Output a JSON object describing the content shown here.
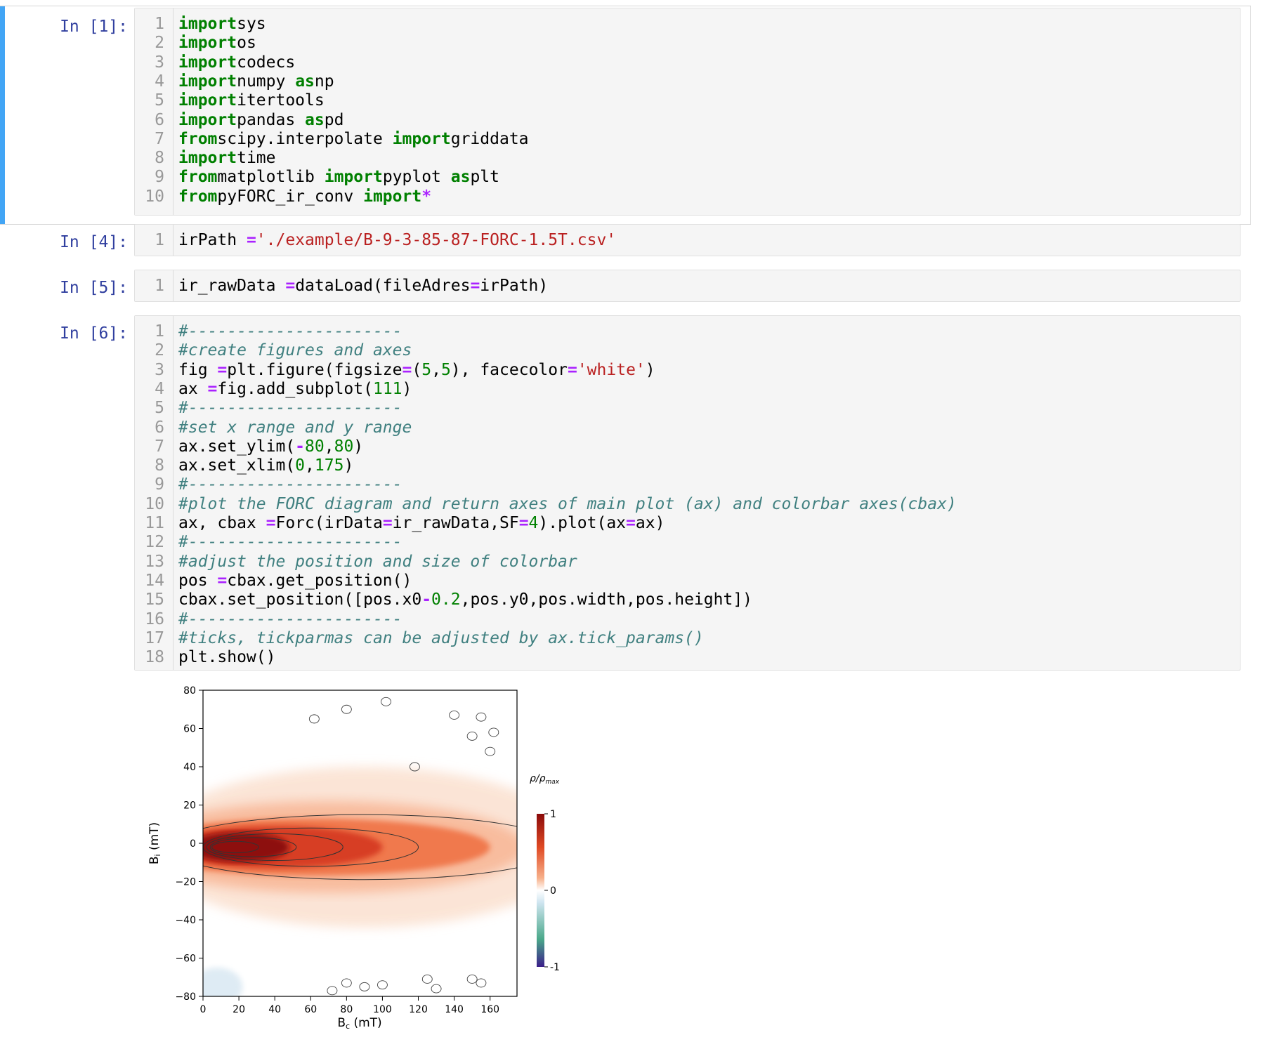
{
  "cells": [
    {
      "prompt": "In [1]:",
      "lines": [
        [
          [
            "kw",
            "import"
          ],
          [
            "",
            "sys"
          ]
        ],
        [
          [
            "kw",
            "import"
          ],
          [
            "",
            "os"
          ]
        ],
        [
          [
            "kw",
            "import"
          ],
          [
            "",
            "codecs"
          ]
        ],
        [
          [
            "kw",
            "import"
          ],
          [
            "",
            "numpy "
          ],
          [
            "kw",
            "as"
          ],
          [
            "",
            "np"
          ]
        ],
        [
          [
            "kw",
            "import"
          ],
          [
            "",
            "itertools"
          ]
        ],
        [
          [
            "kw",
            "import"
          ],
          [
            "",
            "pandas "
          ],
          [
            "kw",
            "as"
          ],
          [
            "",
            "pd"
          ]
        ],
        [
          [
            "kw",
            "from"
          ],
          [
            "",
            "scipy.interpolate "
          ],
          [
            "kw",
            "import"
          ],
          [
            "",
            "griddata"
          ]
        ],
        [
          [
            "kw",
            "import"
          ],
          [
            "",
            "time"
          ]
        ],
        [
          [
            "kw",
            "from"
          ],
          [
            "",
            "matplotlib "
          ],
          [
            "kw",
            "import"
          ],
          [
            "",
            "pyplot "
          ],
          [
            "kw",
            "as"
          ],
          [
            "",
            "plt"
          ]
        ],
        [
          [
            "kw",
            "from"
          ],
          [
            "",
            "pyFORC_ir_conv "
          ],
          [
            "kw",
            "import"
          ],
          [
            "op",
            "*"
          ]
        ]
      ]
    },
    {
      "prompt": "In [4]:",
      "lines": [
        [
          [
            "",
            "irPath "
          ],
          [
            "op",
            "="
          ],
          [
            "",
            ""
          ],
          [
            "str",
            "'./example/B-9-3-85-87-FORC-1.5T.csv'"
          ]
        ]
      ]
    },
    {
      "prompt": "In [5]:",
      "lines": [
        [
          [
            "",
            "ir_rawData "
          ],
          [
            "op",
            "="
          ],
          [
            "",
            "dataLoad(fileAdres"
          ],
          [
            "op",
            "="
          ],
          [
            "",
            "irPath)"
          ]
        ]
      ]
    },
    {
      "prompt": "In [6]:",
      "lines": [
        [
          [
            "cm",
            "#----------------------"
          ]
        ],
        [
          [
            "cm",
            "#create figures and axes"
          ]
        ],
        [
          [
            "",
            "fig "
          ],
          [
            "op",
            "="
          ],
          [
            "",
            "plt.figure(figsize"
          ],
          [
            "op",
            "="
          ],
          [
            "",
            "("
          ],
          [
            "num",
            "5"
          ],
          [
            "",
            ","
          ],
          [
            "num",
            "5"
          ],
          [
            "",
            "), facecolor"
          ],
          [
            "op",
            "="
          ],
          [
            "str",
            "'white'"
          ],
          [
            "",
            ")"
          ]
        ],
        [
          [
            "",
            "ax "
          ],
          [
            "op",
            "="
          ],
          [
            "",
            "fig.add_subplot("
          ],
          [
            "num",
            "111"
          ],
          [
            "",
            ")"
          ]
        ],
        [
          [
            "cm",
            "#----------------------"
          ]
        ],
        [
          [
            "cm",
            "#set x range and y range"
          ]
        ],
        [
          [
            "",
            "ax.set_ylim("
          ],
          [
            "op",
            "-"
          ],
          [
            "num",
            "80"
          ],
          [
            "",
            ","
          ],
          [
            "num",
            "80"
          ],
          [
            "",
            ")"
          ]
        ],
        [
          [
            "",
            "ax.set_xlim("
          ],
          [
            "num",
            "0"
          ],
          [
            "",
            ","
          ],
          [
            "num",
            "175"
          ],
          [
            "",
            ")"
          ]
        ],
        [
          [
            "cm",
            "#----------------------"
          ]
        ],
        [
          [
            "cm",
            "#plot the FORC diagram and return axes of main plot (ax) and colorbar axes(cbax)"
          ]
        ],
        [
          [
            "",
            "ax, cbax "
          ],
          [
            "op",
            "="
          ],
          [
            "",
            "Forc(irData"
          ],
          [
            "op",
            "="
          ],
          [
            "",
            "ir_rawData,SF"
          ],
          [
            "op",
            "="
          ],
          [
            "num",
            "4"
          ],
          [
            "",
            ").plot(ax"
          ],
          [
            "op",
            "="
          ],
          [
            "",
            "ax)"
          ]
        ],
        [
          [
            "cm",
            "#----------------------"
          ]
        ],
        [
          [
            "cm",
            "#adjust the position and size of colorbar"
          ]
        ],
        [
          [
            "",
            "pos "
          ],
          [
            "op",
            "="
          ],
          [
            "",
            "cbax.get_position()"
          ]
        ],
        [
          [
            "",
            "cbax.set_position([pos.x0"
          ],
          [
            "op",
            "-"
          ],
          [
            "num",
            "0.2"
          ],
          [
            "",
            ",pos.y0,pos.width,pos.height])"
          ]
        ],
        [
          [
            "cm",
            "#----------------------"
          ]
        ],
        [
          [
            "cm",
            "#ticks, tickparmas can be adjusted by ax.tick_params()"
          ]
        ],
        [
          [
            "",
            "plt.show()"
          ]
        ]
      ]
    }
  ],
  "chart_data": {
    "type": "heatmap",
    "xlabel": "B_c (mT)",
    "ylabel": "B_i (mT)",
    "xlim": [
      0,
      175
    ],
    "ylim": [
      -80,
      80
    ],
    "xticks": [
      0,
      20,
      40,
      60,
      80,
      100,
      120,
      140,
      160
    ],
    "yticks": [
      -80,
      -60,
      -40,
      -20,
      0,
      20,
      40,
      60,
      80
    ],
    "colorbar": {
      "label": "ρ/ρ_max",
      "ticks": [
        -1,
        0,
        1
      ],
      "colormap": "RdBu-like diverging (red high, blue low)"
    },
    "ridge": {
      "Bi_center": -2,
      "peak_Bc": 12,
      "peak_value": 1.0
    },
    "grid": false
  },
  "chart_text": {
    "xlabel_main": "B",
    "xlabel_sub": "c",
    "xlabel_unit": " (mT)",
    "ylabel_main": "B",
    "ylabel_sub": "i",
    "ylabel_unit": " (mT)",
    "cbar_rho": "ρ/ρ",
    "cbar_sub": "max"
  }
}
